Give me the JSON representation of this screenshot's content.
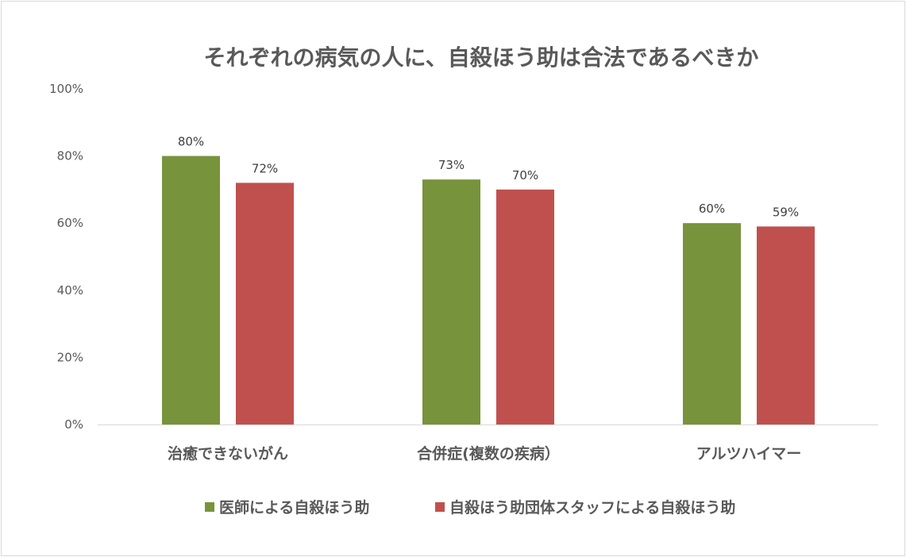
{
  "chart_data": {
    "type": "bar",
    "title": "それぞれの病気の人に、自殺ほう助は合法であるべきか",
    "categories": [
      "治癒できないがん",
      "合併症(複数の疾病）",
      "アルツハイマー"
    ],
    "series": [
      {
        "name": "医師による自殺ほう助",
        "values": [
          80,
          73,
          60
        ],
        "color": "#77933c"
      },
      {
        "name": "自殺ほう助団体スタッフによる自殺ほう助",
        "values": [
          72,
          70,
          59
        ],
        "color": "#c0504d"
      }
    ],
    "ylim": [
      0,
      100
    ],
    "yticks": [
      0,
      20,
      40,
      60,
      80,
      100
    ],
    "ytick_suffix": "%",
    "grid": false,
    "legend": "bottom",
    "xlabel": "",
    "ylabel": ""
  }
}
